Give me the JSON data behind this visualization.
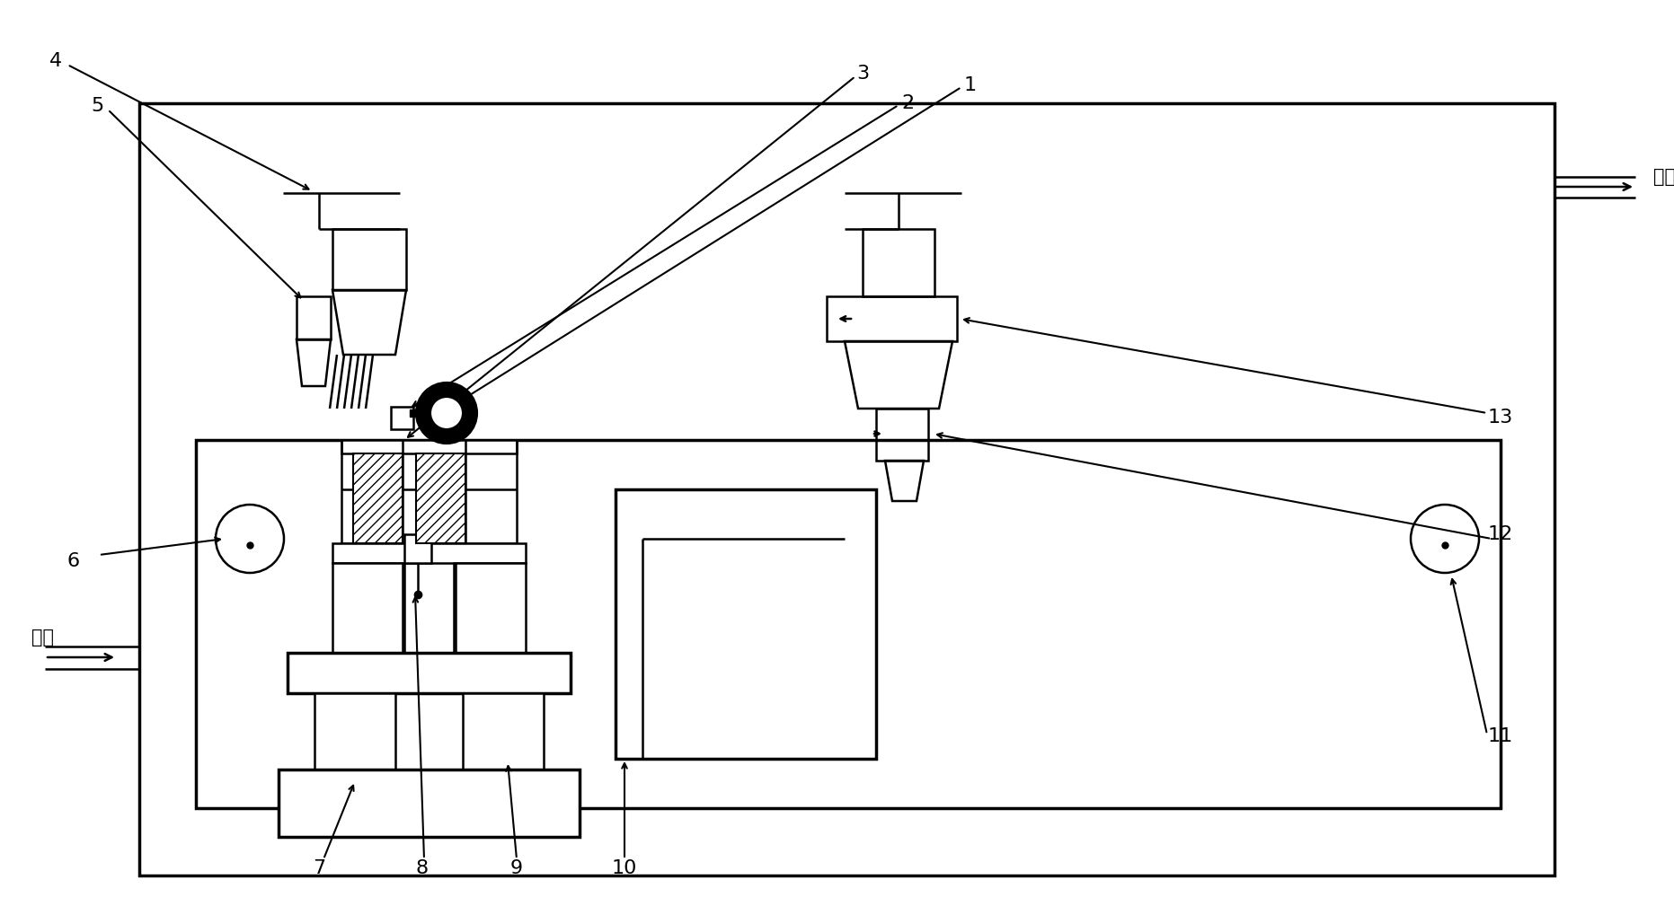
{
  "bg": "#ffffff",
  "lc": "#000000",
  "lw": 1.8,
  "lwt": 2.5,
  "fw": 18.63,
  "fh": 10.09,
  "fs": 14
}
